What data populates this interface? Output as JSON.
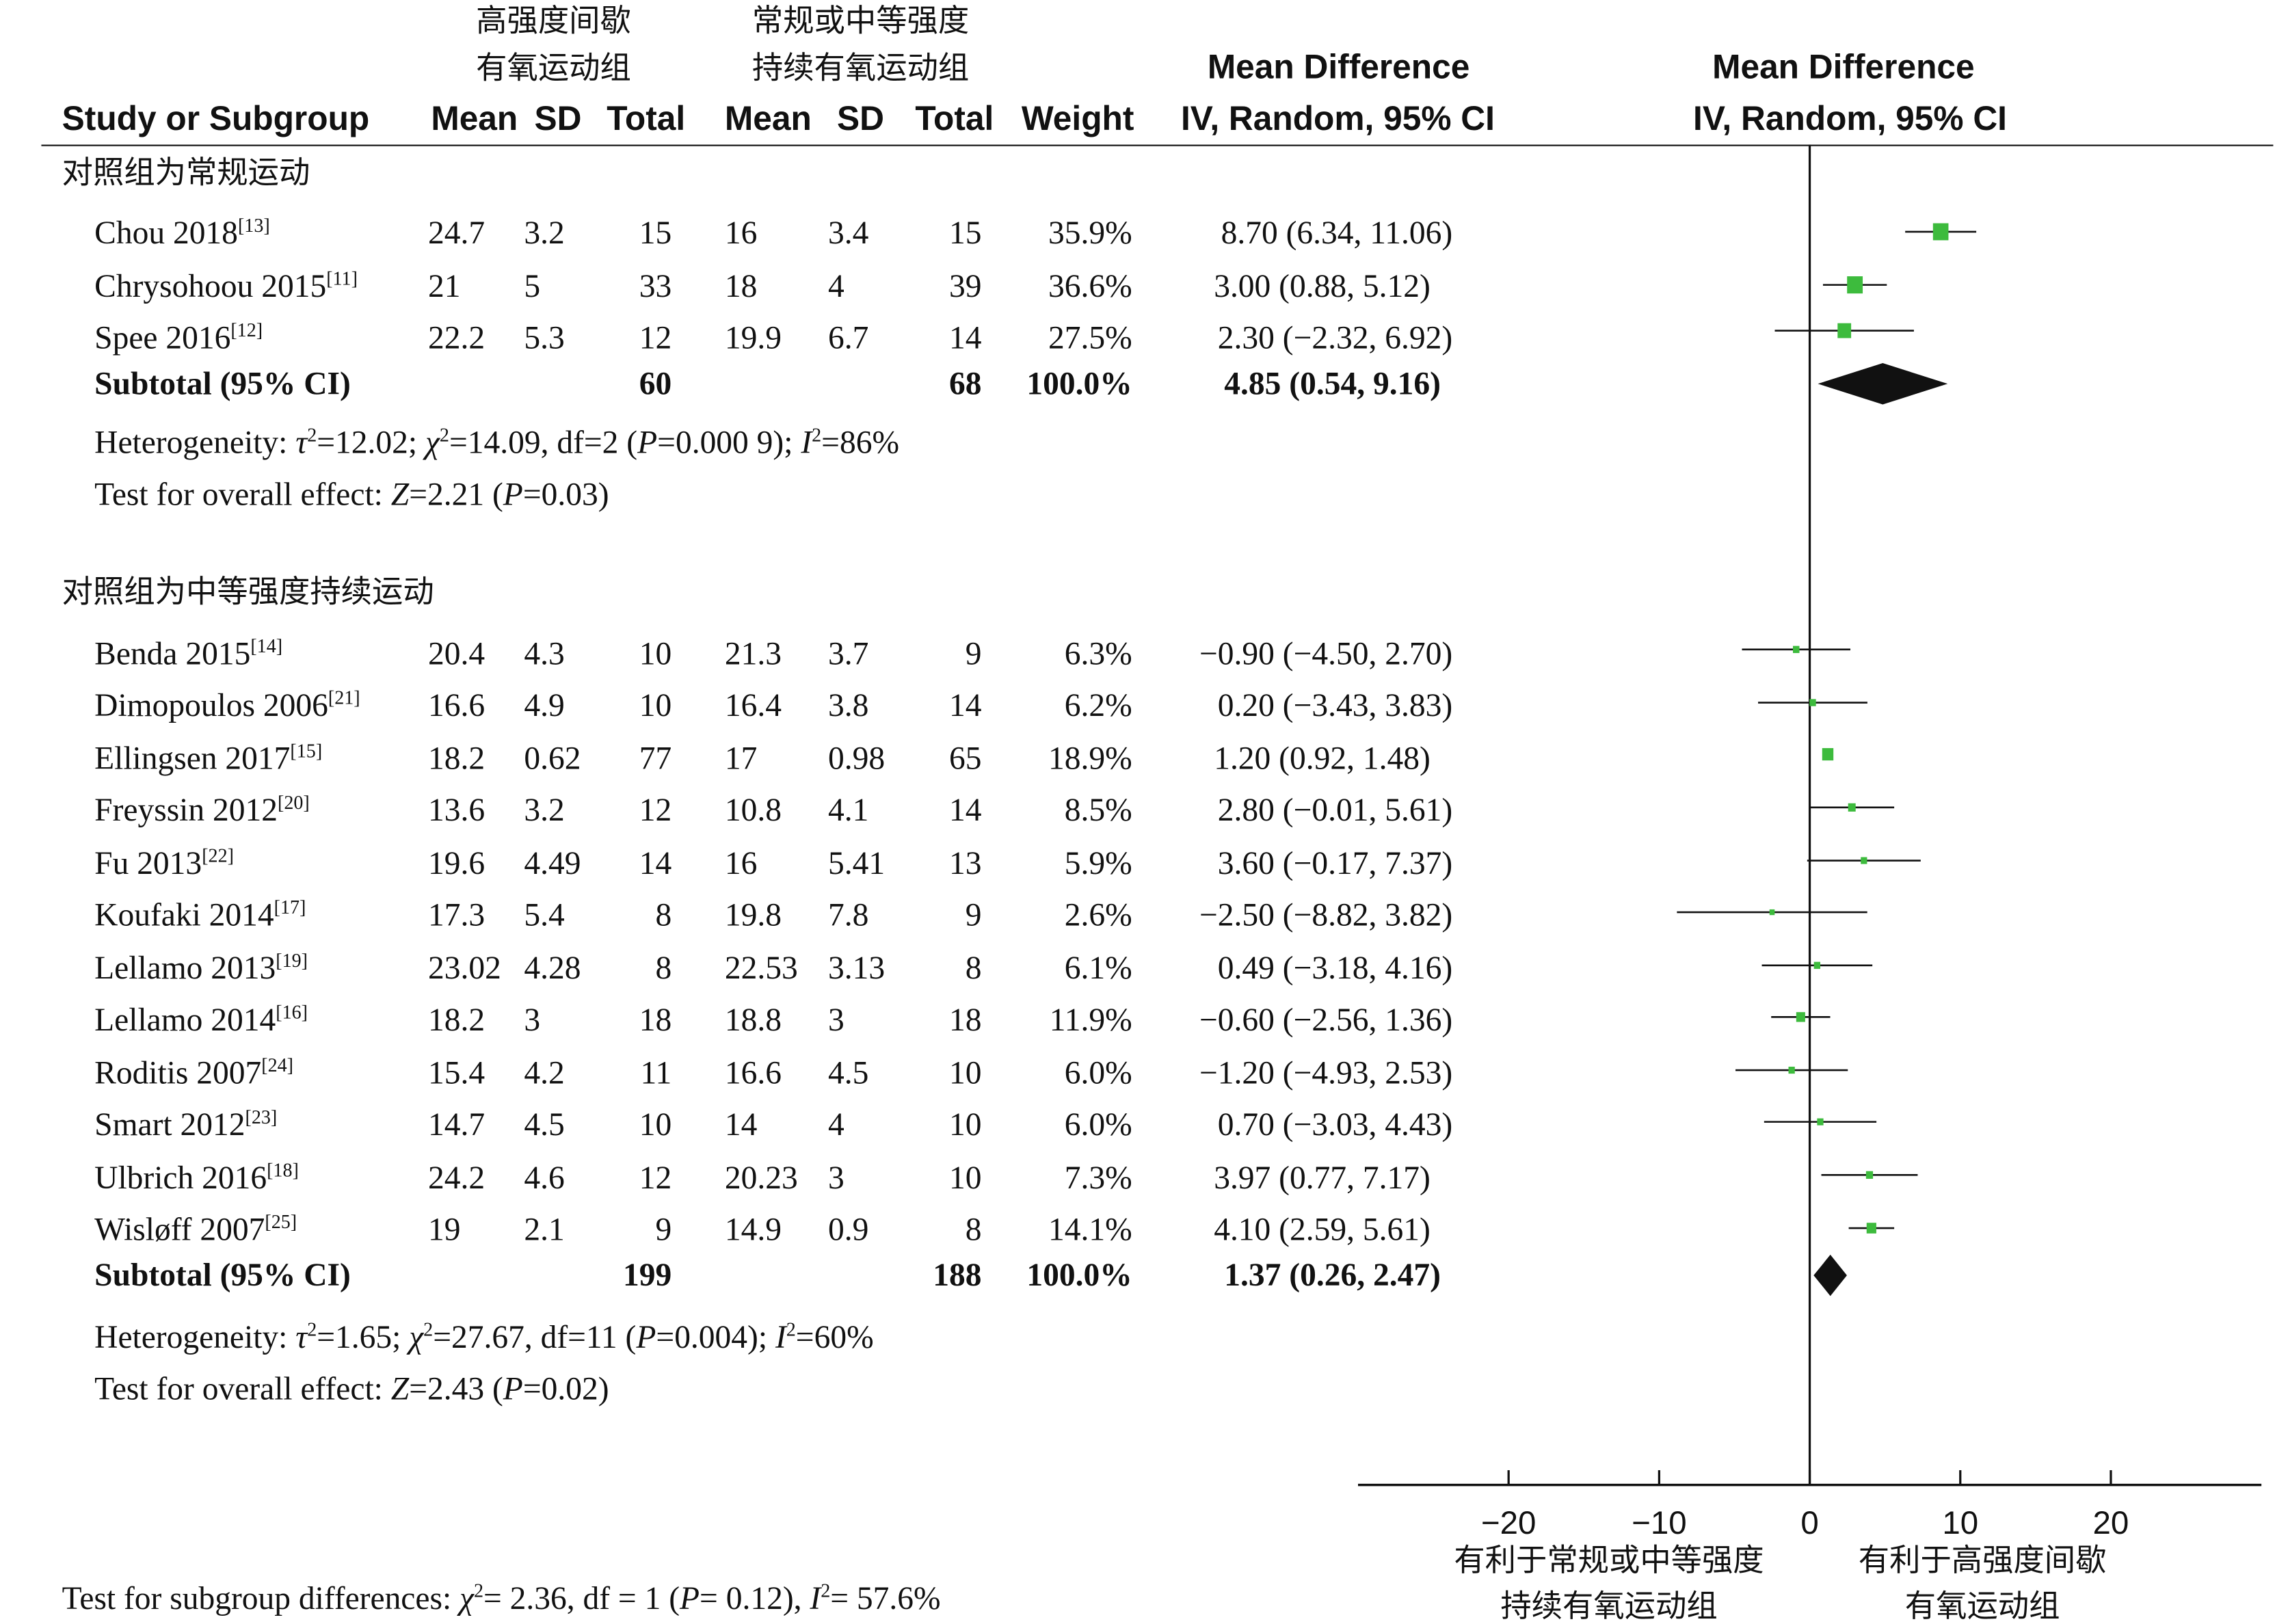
{
  "headers": {
    "study": "Study or Subgroup",
    "exp_group_line1": "高强度间歇",
    "exp_group_line2": "有氧运动组",
    "ctrl_group_line1": "常规或中等强度",
    "ctrl_group_line2": "持续有氧运动组",
    "mean": "Mean",
    "sd": "SD",
    "total": "Total",
    "weight": "Weight",
    "md_title": "Mean Difference",
    "md_method": "IV, Random, 95% CI",
    "plot_title": "Mean Difference",
    "plot_method": "IV, Random, 95% CI"
  },
  "subgroups": [
    {
      "title": "对照组为常规运动",
      "studies": [
        {
          "name": "Chou 2018",
          "ref": "[13]",
          "e_mean": "24.7",
          "e_sd": "3.2",
          "e_total": "15",
          "c_mean": "16",
          "c_sd": "3.4",
          "c_total": "15",
          "weight": "35.9%",
          "ci_text": "8.70 (6.34, 11.06)"
        },
        {
          "name": "Chrysohoou 2015",
          "ref": "[11]",
          "e_mean": "21",
          "e_sd": "5",
          "e_total": "33",
          "c_mean": "18",
          "c_sd": "4",
          "c_total": "39",
          "weight": "36.6%",
          "ci_text": "3.00 (0.88, 5.12)"
        },
        {
          "name": "Spee 2016",
          "ref": "[12]",
          "e_mean": "22.2",
          "e_sd": "5.3",
          "e_total": "12",
          "c_mean": "19.9",
          "c_sd": "6.7",
          "c_total": "14",
          "weight": "27.5%",
          "ci_text": "2.30 (−2.32, 6.92)"
        }
      ],
      "subtotal": {
        "label": "Subtotal (95% CI)",
        "e_total": "60",
        "c_total": "68",
        "weight": "100.0%",
        "ci_text": "4.85 (0.54, 9.16)"
      },
      "heterogeneity": "Heterogeneity: τ²=12.02; χ²=14.09, df=2 (P=0.000 9); I²=86%",
      "overall": "Test for overall effect: Z=2.21 (P=0.03)"
    },
    {
      "title": "对照组为中等强度持续运动",
      "studies": [
        {
          "name": "Benda 2015",
          "ref": "[14]",
          "e_mean": "20.4",
          "e_sd": "4.3",
          "e_total": "10",
          "c_mean": "21.3",
          "c_sd": "3.7",
          "c_total": "9",
          "weight": "6.3%",
          "ci_text": "−0.90 (−4.50, 2.70)"
        },
        {
          "name": "Dimopoulos 2006",
          "ref": "[21]",
          "e_mean": "16.6",
          "e_sd": "4.9",
          "e_total": "10",
          "c_mean": "16.4",
          "c_sd": "3.8",
          "c_total": "14",
          "weight": "6.2%",
          "ci_text": "0.20 (−3.43, 3.83)"
        },
        {
          "name": "Ellingsen 2017",
          "ref": "[15]",
          "e_mean": "18.2",
          "e_sd": "0.62",
          "e_total": "77",
          "c_mean": "17",
          "c_sd": "0.98",
          "c_total": "65",
          "weight": "18.9%",
          "ci_text": "1.20 (0.92, 1.48)"
        },
        {
          "name": "Freyssin 2012",
          "ref": "[20]",
          "e_mean": "13.6",
          "e_sd": "3.2",
          "e_total": "12",
          "c_mean": "10.8",
          "c_sd": "4.1",
          "c_total": "14",
          "weight": "8.5%",
          "ci_text": "2.80 (−0.01, 5.61)"
        },
        {
          "name": "Fu 2013",
          "ref": "[22]",
          "e_mean": "19.6",
          "e_sd": "4.49",
          "e_total": "14",
          "c_mean": "16",
          "c_sd": "5.41",
          "c_total": "13",
          "weight": "5.9%",
          "ci_text": "3.60 (−0.17, 7.37)"
        },
        {
          "name": "Koufaki 2014",
          "ref": "[17]",
          "e_mean": "17.3",
          "e_sd": "5.4",
          "e_total": "8",
          "c_mean": "19.8",
          "c_sd": "7.8",
          "c_total": "9",
          "weight": "2.6%",
          "ci_text": "−2.50 (−8.82, 3.82)"
        },
        {
          "name": "Lellamo 2013",
          "ref": "[19]",
          "e_mean": "23.02",
          "e_sd": "4.28",
          "e_total": "8",
          "c_mean": "22.53",
          "c_sd": "3.13",
          "c_total": "8",
          "weight": "6.1%",
          "ci_text": "0.49 (−3.18, 4.16)"
        },
        {
          "name": "Lellamo 2014",
          "ref": "[16]",
          "e_mean": "18.2",
          "e_sd": "3",
          "e_total": "18",
          "c_mean": "18.8",
          "c_sd": "3",
          "c_total": "18",
          "weight": "11.9%",
          "ci_text": "−0.60 (−2.56, 1.36)"
        },
        {
          "name": "Roditis 2007",
          "ref": "[24]",
          "e_mean": "15.4",
          "e_sd": "4.2",
          "e_total": "11",
          "c_mean": "16.6",
          "c_sd": "4.5",
          "c_total": "10",
          "weight": "6.0%",
          "ci_text": "−1.20 (−4.93, 2.53)"
        },
        {
          "name": "Smart 2012",
          "ref": "[23]",
          "e_mean": "14.7",
          "e_sd": "4.5",
          "e_total": "10",
          "c_mean": "14",
          "c_sd": "4",
          "c_total": "10",
          "weight": "6.0%",
          "ci_text": "0.70 (−3.03, 4.43)"
        },
        {
          "name": "Ulbrich 2016",
          "ref": "[18]",
          "e_mean": "24.2",
          "e_sd": "4.6",
          "e_total": "12",
          "c_mean": "20.23",
          "c_sd": "3",
          "c_total": "10",
          "weight": "7.3%",
          "ci_text": "3.97 (0.77, 7.17)"
        },
        {
          "name": "Wisløff 2007",
          "ref": "[25]",
          "e_mean": "19",
          "e_sd": "2.1",
          "e_total": "9",
          "c_mean": "14.9",
          "c_sd": "0.9",
          "c_total": "8",
          "weight": "14.1%",
          "ci_text": "4.10 (2.59, 5.61)"
        }
      ],
      "subtotal": {
        "label": "Subtotal (95% CI)",
        "e_total": "199",
        "c_total": "188",
        "weight": "100.0%",
        "ci_text": "1.37 (0.26, 2.47)"
      },
      "heterogeneity": "Heterogeneity: τ²=1.65; χ²=27.67, df=11 (P=0.004); I²=60%",
      "overall": "Test for overall effect: Z=2.43 (P=0.02)"
    }
  ],
  "subgroup_test": "Test for subgroup differences: χ²= 2.36, df = 1 (P= 0.12), I²= 57.6%",
  "axis": {
    "favours_left_line1": "有利于常规或中等强度",
    "favours_left_line2": "持续有氧运动组",
    "favours_right_line1": "有利于高强度间歇",
    "favours_right_line2": "有氧运动组"
  },
  "colors": {
    "study_marker": "#3dbb3d",
    "summary_diamond": "#111111",
    "lines": "#111111"
  },
  "chart_data": {
    "type": "forest",
    "x_axis": {
      "range": [
        -30,
        30
      ],
      "ticks": [
        -20,
        -10,
        0,
        10,
        20
      ],
      "tick_labels": [
        "−20",
        "−10",
        "0",
        "10",
        "20"
      ],
      "reference_line": 0
    },
    "groups": [
      {
        "name": "对照组为常规运动",
        "studies": [
          {
            "label": "Chou 2018",
            "md": 8.7,
            "lo": 6.34,
            "hi": 11.06,
            "weight": 35.9
          },
          {
            "label": "Chrysohoou 2015",
            "md": 3.0,
            "lo": 0.88,
            "hi": 5.12,
            "weight": 36.6
          },
          {
            "label": "Spee 2016",
            "md": 2.3,
            "lo": -2.32,
            "hi": 6.92,
            "weight": 27.5
          }
        ],
        "summary": {
          "md": 4.85,
          "lo": 0.54,
          "hi": 9.16
        }
      },
      {
        "name": "对照组为中等强度持续运动",
        "studies": [
          {
            "label": "Benda 2015",
            "md": -0.9,
            "lo": -4.5,
            "hi": 2.7,
            "weight": 6.3
          },
          {
            "label": "Dimopoulos 2006",
            "md": 0.2,
            "lo": -3.43,
            "hi": 3.83,
            "weight": 6.2
          },
          {
            "label": "Ellingsen 2017",
            "md": 1.2,
            "lo": 0.92,
            "hi": 1.48,
            "weight": 18.9
          },
          {
            "label": "Freyssin 2012",
            "md": 2.8,
            "lo": -0.01,
            "hi": 5.61,
            "weight": 8.5
          },
          {
            "label": "Fu 2013",
            "md": 3.6,
            "lo": -0.17,
            "hi": 7.37,
            "weight": 5.9
          },
          {
            "label": "Koufaki 2014",
            "md": -2.5,
            "lo": -8.82,
            "hi": 3.82,
            "weight": 2.6
          },
          {
            "label": "Lellamo 2013",
            "md": 0.49,
            "lo": -3.18,
            "hi": 4.16,
            "weight": 6.1
          },
          {
            "label": "Lellamo 2014",
            "md": -0.6,
            "lo": -2.56,
            "hi": 1.36,
            "weight": 11.9
          },
          {
            "label": "Roditis 2007",
            "md": -1.2,
            "lo": -4.93,
            "hi": 2.53,
            "weight": 6.0
          },
          {
            "label": "Smart 2012",
            "md": 0.7,
            "lo": -3.03,
            "hi": 4.43,
            "weight": 6.0
          },
          {
            "label": "Ulbrich 2016",
            "md": 3.97,
            "lo": 0.77,
            "hi": 7.17,
            "weight": 7.3
          },
          {
            "label": "Wisløff 2007",
            "md": 4.1,
            "lo": 2.59,
            "hi": 5.61,
            "weight": 14.1
          }
        ],
        "summary": {
          "md": 1.37,
          "lo": 0.26,
          "hi": 2.47
        }
      }
    ]
  }
}
